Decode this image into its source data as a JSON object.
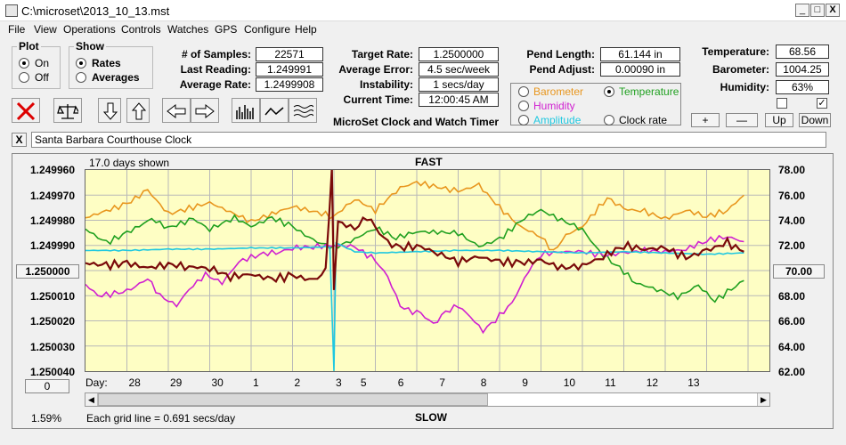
{
  "window": {
    "title": "C:\\microset\\2013_10_13.mst",
    "min_label": "_",
    "max_label": "□",
    "close_label": "X"
  },
  "menu": [
    "File",
    "View",
    "Operations",
    "Controls",
    "Watches",
    "GPS",
    "Configure",
    "Help"
  ],
  "plot_group": {
    "title": "Plot",
    "options": [
      "On",
      "Off"
    ],
    "selected": "On"
  },
  "show_group": {
    "title": "Show",
    "options": [
      "Rates",
      "Averages"
    ],
    "selected": "Rates"
  },
  "stats": {
    "samples_label": "# of Samples:",
    "samples": "22571",
    "last_label": "Last Reading:",
    "last": "1.249991",
    "avg_label": "Average Rate:",
    "avg": "1.2499908",
    "target_label": "Target Rate:",
    "target": "1.2500000",
    "error_label": "Average Error:",
    "error": "4.5 sec/week",
    "instab_label": "Instability:",
    "instab": "1 secs/day",
    "time_label": "Current Time:",
    "time": "12:00:45 AM",
    "pendlen_label": "Pend Length:",
    "pendlen": "61.144 in",
    "pendadj_label": "Pend Adjust:",
    "pendadj": "0.00090 in",
    "temp_label": "Temperature:",
    "temp": "68.56",
    "baro_label": "Barometer:",
    "baro": "1004.25",
    "hum_label": "Humidity:",
    "hum": "63%"
  },
  "app_caption": "MicroSet Clock and Watch Timer",
  "sensors": {
    "options": [
      {
        "label": "Barometer",
        "color": "#e8961e"
      },
      {
        "label": "Temperature",
        "color": "#20a020"
      },
      {
        "label": "Humidity",
        "color": "#d020d0"
      },
      {
        "label": "Amplitude",
        "color": "#20c8e0"
      },
      {
        "label": "Clock rate",
        "color": "#000000"
      }
    ],
    "selected": "Temperature"
  },
  "right_buttons": {
    "plus": "+",
    "minus": "—",
    "up": "Up",
    "down": "Down"
  },
  "clock_name": "Santa Barbara Courthouse Clock",
  "close_x": "X",
  "chart": {
    "days_shown": "17.0 days shown",
    "top_label": "FAST",
    "bottom_label": "SLOW",
    "grid_note": "Each grid line = 0.691 secs/day",
    "percent": "1.59%",
    "left_button": "1.250000",
    "right_button": "70.00",
    "zero_button": "0",
    "day_label": "Day:",
    "y_left": [
      "1.249960",
      "1.249970",
      "1.249980",
      "1.249990",
      "1.250000",
      "1.250010",
      "1.250020",
      "1.250030",
      "1.250040"
    ],
    "y_right": [
      "78.00",
      "76.00",
      "74.00",
      "72.00",
      "70.00",
      "68.00",
      "66.00",
      "64.00",
      "62.00"
    ],
    "days": [
      "28",
      "29",
      "30",
      "1",
      "2",
      "3",
      "5",
      "6",
      "7",
      "8",
      "9",
      "10",
      "11",
      "12",
      "13"
    ]
  },
  "chart_data": {
    "type": "line",
    "x_unit": "day",
    "ylim_left": [
      1.24996,
      1.25004
    ],
    "ylim_right": [
      62,
      78
    ],
    "series": [
      {
        "name": "Barometer",
        "color": "#e8961e",
        "values": [
          [
            0,
            74.2
          ],
          [
            1,
            75.3
          ],
          [
            1.5,
            76.4
          ],
          [
            2,
            74.5
          ],
          [
            3,
            75.4
          ],
          [
            4,
            73.9
          ],
          [
            5,
            75.1
          ],
          [
            6,
            74.3
          ],
          [
            6.5,
            75.7
          ],
          [
            7,
            74.8
          ],
          [
            7.6,
            76.6
          ],
          [
            8,
            77.0
          ],
          [
            9,
            76.3
          ],
          [
            9.5,
            76.8
          ],
          [
            10,
            75.0
          ],
          [
            10.5,
            73.5
          ],
          [
            11,
            72.7
          ],
          [
            11.3,
            71.5
          ],
          [
            11.6,
            72.8
          ],
          [
            12,
            73.5
          ],
          [
            12.6,
            75.8
          ],
          [
            13,
            74.9
          ],
          [
            13.5,
            74.7
          ],
          [
            14,
            74.1
          ],
          [
            14.5,
            74.8
          ],
          [
            15,
            74.3
          ],
          [
            15.5,
            74.8
          ],
          [
            15.9,
            76.0
          ]
        ]
      },
      {
        "name": "Temperature",
        "color": "#20a020",
        "values": [
          [
            0,
            73.3
          ],
          [
            0.5,
            72.2
          ],
          [
            1,
            73.0
          ],
          [
            1.6,
            74.1
          ],
          [
            2,
            73.4
          ],
          [
            2.6,
            74.1
          ],
          [
            3,
            73.3
          ],
          [
            3.6,
            74.2
          ],
          [
            4,
            73.5
          ],
          [
            4.5,
            74.2
          ],
          [
            5,
            73.5
          ],
          [
            5.5,
            72.4
          ],
          [
            6,
            71.8
          ],
          [
            6.5,
            72.5
          ],
          [
            7,
            73.4
          ],
          [
            7.5,
            72.6
          ],
          [
            8,
            73.1
          ],
          [
            9,
            73.0
          ],
          [
            9.5,
            71.9
          ],
          [
            10,
            72.5
          ],
          [
            10.6,
            74.2
          ],
          [
            11,
            74.8
          ],
          [
            11.5,
            74.0
          ],
          [
            12,
            73.3
          ],
          [
            12.4,
            71.5
          ],
          [
            12.8,
            70.5
          ],
          [
            13.3,
            69.0
          ],
          [
            13.8,
            68.5
          ],
          [
            14.3,
            67.9
          ],
          [
            14.8,
            68.8
          ],
          [
            15.2,
            67.6
          ],
          [
            15.6,
            68.5
          ],
          [
            15.9,
            69.2
          ]
        ]
      },
      {
        "name": "Humidity",
        "color": "#d020d0",
        "values": [
          [
            0,
            68.9
          ],
          [
            0.3,
            68.0
          ],
          [
            0.8,
            68.2
          ],
          [
            1.1,
            68.5
          ],
          [
            1.5,
            69.4
          ],
          [
            1.8,
            68.0
          ],
          [
            2.2,
            67.2
          ],
          [
            2.5,
            68.5
          ],
          [
            2.9,
            69.7
          ],
          [
            3.3,
            69.0
          ],
          [
            3.7,
            70.7
          ],
          [
            4.2,
            71.3
          ],
          [
            4.7,
            71.5
          ],
          [
            5,
            71.8
          ],
          [
            5.5,
            71.9
          ],
          [
            6,
            72.0
          ],
          [
            6.5,
            71.9
          ],
          [
            7,
            70.8
          ],
          [
            7.3,
            69.5
          ],
          [
            7.6,
            67.2
          ],
          [
            7.8,
            66.8
          ],
          [
            8.1,
            66.6
          ],
          [
            8.4,
            65.7
          ],
          [
            8.7,
            66.7
          ],
          [
            9,
            67.2
          ],
          [
            9.3,
            66.3
          ],
          [
            9.6,
            65.2
          ],
          [
            9.9,
            66.1
          ],
          [
            10.3,
            67.4
          ],
          [
            10.7,
            70.0
          ],
          [
            11,
            71.3
          ],
          [
            11.5,
            71.5
          ],
          [
            12,
            71.5
          ],
          [
            12.5,
            71.2
          ],
          [
            13,
            71.4
          ],
          [
            13.5,
            71.6
          ],
          [
            14,
            71.5
          ],
          [
            14.5,
            71.7
          ],
          [
            15,
            72.4
          ],
          [
            15.5,
            72.7
          ],
          [
            15.9,
            72.3
          ]
        ]
      },
      {
        "name": "Amplitude",
        "color": "#20c8e0",
        "values": [
          [
            0,
            71.6
          ],
          [
            1,
            71.6
          ],
          [
            2,
            71.7
          ],
          [
            3,
            71.7
          ],
          [
            4,
            71.8
          ],
          [
            5,
            71.8
          ],
          [
            5.9,
            71.9
          ],
          [
            6,
            62.0
          ],
          [
            6.05,
            72.2
          ],
          [
            6.5,
            71.5
          ],
          [
            7,
            71.4
          ],
          [
            8,
            71.5
          ],
          [
            9,
            71.6
          ],
          [
            10,
            71.6
          ],
          [
            11,
            71.5
          ],
          [
            12,
            71.4
          ],
          [
            13,
            71.5
          ],
          [
            14,
            71.4
          ],
          [
            15,
            71.3
          ],
          [
            15.9,
            71.4
          ]
        ]
      },
      {
        "name": "Clock rate",
        "color": "#7a0a0a",
        "values": [
          [
            0,
            70.6
          ],
          [
            0.5,
            70.4
          ],
          [
            1,
            70.6
          ],
          [
            1.5,
            70.2
          ],
          [
            2,
            70.5
          ],
          [
            2.5,
            70.3
          ],
          [
            3,
            70.2
          ],
          [
            3.5,
            69.5
          ],
          [
            4,
            69.7
          ],
          [
            4.5,
            69.3
          ],
          [
            5,
            69.6
          ],
          [
            5.5,
            69.2
          ],
          [
            5.8,
            69.9
          ],
          [
            5.95,
            77.9
          ],
          [
            6.0,
            68.5
          ],
          [
            6.1,
            73.9
          ],
          [
            6.5,
            73.3
          ],
          [
            6.8,
            74.3
          ],
          [
            7,
            73.4
          ],
          [
            7.3,
            72.2
          ],
          [
            7.6,
            71.8
          ],
          [
            8,
            72.0
          ],
          [
            8.5,
            71.4
          ],
          [
            9,
            70.7
          ],
          [
            9.5,
            71.1
          ],
          [
            10,
            70.7
          ],
          [
            10.5,
            70.6
          ],
          [
            11,
            70.8
          ],
          [
            11.5,
            70.2
          ],
          [
            12,
            70.4
          ],
          [
            12.5,
            71.1
          ],
          [
            13,
            72.0
          ],
          [
            13.5,
            71.7
          ],
          [
            14,
            71.8
          ],
          [
            14.5,
            71.0
          ],
          [
            15,
            71.6
          ],
          [
            15.5,
            72.2
          ],
          [
            15.9,
            71.5
          ]
        ]
      }
    ]
  }
}
